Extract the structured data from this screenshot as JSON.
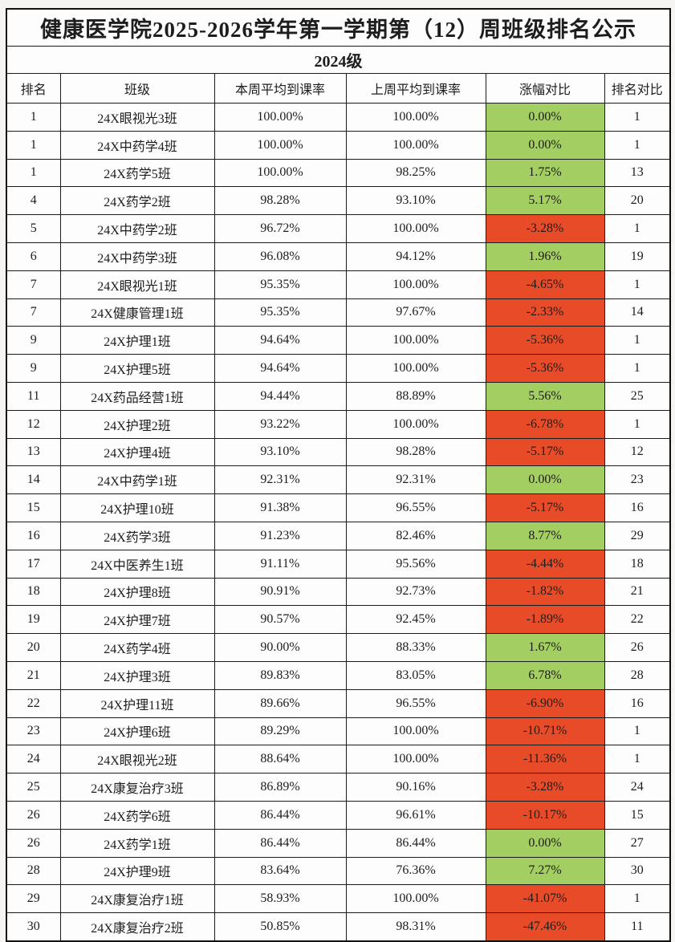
{
  "page": {
    "title": "健康医学院2025-2026学年第一学期第（12）周班级排名公示",
    "grade_label": "2024级"
  },
  "colors": {
    "positive_bg": "#a3cf62",
    "negative_bg": "#e84b27",
    "border": "#1a1a1a",
    "text": "#1d1d1d"
  },
  "table": {
    "columns": [
      "排名",
      "班级",
      "本周平均到课率",
      "上周平均到课率",
      "涨幅对比",
      "排名对比"
    ],
    "rows": [
      {
        "rank": "1",
        "class_name": "24X眼视光3班",
        "this_week": "100.00%",
        "last_week": "100.00%",
        "change": "0.00%",
        "trend": "up",
        "rank_compare": "1"
      },
      {
        "rank": "1",
        "class_name": "24X中药学4班",
        "this_week": "100.00%",
        "last_week": "100.00%",
        "change": "0.00%",
        "trend": "up",
        "rank_compare": "1"
      },
      {
        "rank": "1",
        "class_name": "24X药学5班",
        "this_week": "100.00%",
        "last_week": "98.25%",
        "change": "1.75%",
        "trend": "up",
        "rank_compare": "13"
      },
      {
        "rank": "4",
        "class_name": "24X药学2班",
        "this_week": "98.28%",
        "last_week": "93.10%",
        "change": "5.17%",
        "trend": "up",
        "rank_compare": "20"
      },
      {
        "rank": "5",
        "class_name": "24X中药学2班",
        "this_week": "96.72%",
        "last_week": "100.00%",
        "change": "-3.28%",
        "trend": "down",
        "rank_compare": "1"
      },
      {
        "rank": "6",
        "class_name": "24X中药学3班",
        "this_week": "96.08%",
        "last_week": "94.12%",
        "change": "1.96%",
        "trend": "up",
        "rank_compare": "19"
      },
      {
        "rank": "7",
        "class_name": "24X眼视光1班",
        "this_week": "95.35%",
        "last_week": "100.00%",
        "change": "-4.65%",
        "trend": "down",
        "rank_compare": "1"
      },
      {
        "rank": "7",
        "class_name": "24X健康管理1班",
        "this_week": "95.35%",
        "last_week": "97.67%",
        "change": "-2.33%",
        "trend": "down",
        "rank_compare": "14"
      },
      {
        "rank": "9",
        "class_name": "24X护理1班",
        "this_week": "94.64%",
        "last_week": "100.00%",
        "change": "-5.36%",
        "trend": "down",
        "rank_compare": "1"
      },
      {
        "rank": "9",
        "class_name": "24X护理5班",
        "this_week": "94.64%",
        "last_week": "100.00%",
        "change": "-5.36%",
        "trend": "down",
        "rank_compare": "1"
      },
      {
        "rank": "11",
        "class_name": "24X药品经营1班",
        "this_week": "94.44%",
        "last_week": "88.89%",
        "change": "5.56%",
        "trend": "up",
        "rank_compare": "25"
      },
      {
        "rank": "12",
        "class_name": "24X护理2班",
        "this_week": "93.22%",
        "last_week": "100.00%",
        "change": "-6.78%",
        "trend": "down",
        "rank_compare": "1"
      },
      {
        "rank": "13",
        "class_name": "24X护理4班",
        "this_week": "93.10%",
        "last_week": "98.28%",
        "change": "-5.17%",
        "trend": "down",
        "rank_compare": "12"
      },
      {
        "rank": "14",
        "class_name": "24X中药学1班",
        "this_week": "92.31%",
        "last_week": "92.31%",
        "change": "0.00%",
        "trend": "up",
        "rank_compare": "23"
      },
      {
        "rank": "15",
        "class_name": "24X护理10班",
        "this_week": "91.38%",
        "last_week": "96.55%",
        "change": "-5.17%",
        "trend": "down",
        "rank_compare": "16"
      },
      {
        "rank": "16",
        "class_name": "24X药学3班",
        "this_week": "91.23%",
        "last_week": "82.46%",
        "change": "8.77%",
        "trend": "up",
        "rank_compare": "29"
      },
      {
        "rank": "17",
        "class_name": "24X中医养生1班",
        "this_week": "91.11%",
        "last_week": "95.56%",
        "change": "-4.44%",
        "trend": "down",
        "rank_compare": "18"
      },
      {
        "rank": "18",
        "class_name": "24X护理8班",
        "this_week": "90.91%",
        "last_week": "92.73%",
        "change": "-1.82%",
        "trend": "down",
        "rank_compare": "21"
      },
      {
        "rank": "19",
        "class_name": "24X护理7班",
        "this_week": "90.57%",
        "last_week": "92.45%",
        "change": "-1.89%",
        "trend": "down",
        "rank_compare": "22"
      },
      {
        "rank": "20",
        "class_name": "24X药学4班",
        "this_week": "90.00%",
        "last_week": "88.33%",
        "change": "1.67%",
        "trend": "up",
        "rank_compare": "26"
      },
      {
        "rank": "21",
        "class_name": "24X护理3班",
        "this_week": "89.83%",
        "last_week": "83.05%",
        "change": "6.78%",
        "trend": "up",
        "rank_compare": "28"
      },
      {
        "rank": "22",
        "class_name": "24X护理11班",
        "this_week": "89.66%",
        "last_week": "96.55%",
        "change": "-6.90%",
        "trend": "down",
        "rank_compare": "16"
      },
      {
        "rank": "23",
        "class_name": "24X护理6班",
        "this_week": "89.29%",
        "last_week": "100.00%",
        "change": "-10.71%",
        "trend": "down",
        "rank_compare": "1"
      },
      {
        "rank": "24",
        "class_name": "24X眼视光2班",
        "this_week": "88.64%",
        "last_week": "100.00%",
        "change": "-11.36%",
        "trend": "down",
        "rank_compare": "1"
      },
      {
        "rank": "25",
        "class_name": "24X康复治疗3班",
        "this_week": "86.89%",
        "last_week": "90.16%",
        "change": "-3.28%",
        "trend": "down",
        "rank_compare": "24"
      },
      {
        "rank": "26",
        "class_name": "24X药学6班",
        "this_week": "86.44%",
        "last_week": "96.61%",
        "change": "-10.17%",
        "trend": "down",
        "rank_compare": "15"
      },
      {
        "rank": "26",
        "class_name": "24X药学1班",
        "this_week": "86.44%",
        "last_week": "86.44%",
        "change": "0.00%",
        "trend": "up",
        "rank_compare": "27"
      },
      {
        "rank": "28",
        "class_name": "24X护理9班",
        "this_week": "83.64%",
        "last_week": "76.36%",
        "change": "7.27%",
        "trend": "up",
        "rank_compare": "30"
      },
      {
        "rank": "29",
        "class_name": "24X康复治疗1班",
        "this_week": "58.93%",
        "last_week": "100.00%",
        "change": "-41.07%",
        "trend": "down",
        "rank_compare": "1"
      },
      {
        "rank": "30",
        "class_name": "24X康复治疗2班",
        "this_week": "50.85%",
        "last_week": "98.31%",
        "change": "-47.46%",
        "trend": "down",
        "rank_compare": "11"
      }
    ]
  }
}
